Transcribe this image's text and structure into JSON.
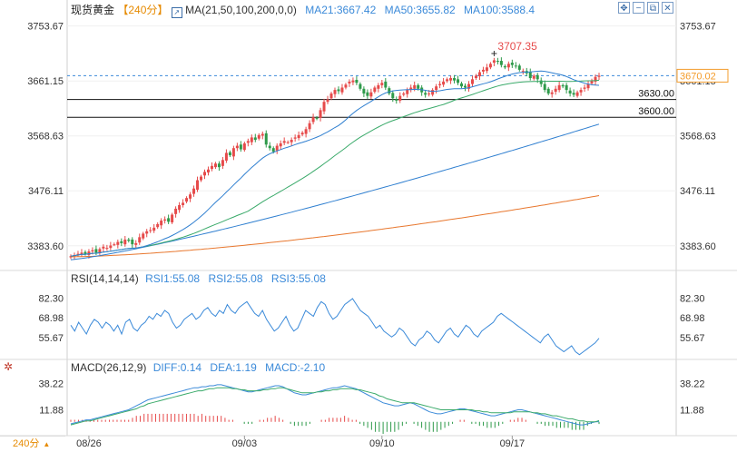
{
  "header": {
    "symbol": "现货黄金",
    "timeframe": "240分",
    "ma_label": "MA(21,50,100,200,0,0)",
    "ma21": "MA21:3667.42",
    "ma50": "MA50:3655.82",
    "ma100": "MA100:3588.4"
  },
  "rsi_header": {
    "label": "RSI(14,14,14)",
    "rsi1": "RSI1:55.08",
    "rsi2": "RSI2:55.08",
    "rsi3": "RSI3:55.08"
  },
  "macd_header": {
    "label": "MACD(26,12,9)",
    "diff": "DIFF:0.14",
    "dea": "DEA:1.19",
    "macd": "MACD:-2.10"
  },
  "timeframe_selector": "240分",
  "colors": {
    "up": "#e64a4a",
    "down": "#2e9a4a",
    "ma21": "#2f7fd0",
    "ma50": "#3aaa6a",
    "ma100": "#2f7fd0",
    "ma200": "#e8772e",
    "price_tag": "#f39c2c",
    "accent_blue": "#3b8ad9"
  },
  "chart_data": {
    "type": "candlestick",
    "price_axis_ticks": [
      "3753.67",
      "3661.15",
      "3568.63",
      "3476.11",
      "3383.60"
    ],
    "price_axis_values": [
      3753.67,
      3661.15,
      3568.63,
      3476.11,
      3383.6
    ],
    "price_range": [
      3345,
      3770
    ],
    "x_axis_labels": [
      "08/26",
      "09/03",
      "09/10",
      "09/17"
    ],
    "x_axis_positions_index": [
      5,
      48,
      86,
      122
    ],
    "bar_count": 147,
    "candles_close": [
      3366,
      3368,
      3370,
      3372,
      3370,
      3374,
      3376,
      3372,
      3378,
      3382,
      3380,
      3384,
      3386,
      3390,
      3388,
      3394,
      3392,
      3386,
      3388,
      3398,
      3404,
      3408,
      3410,
      3414,
      3420,
      3426,
      3428,
      3424,
      3436,
      3446,
      3452,
      3456,
      3464,
      3470,
      3480,
      3494,
      3500,
      3508,
      3512,
      3518,
      3522,
      3516,
      3528,
      3540,
      3536,
      3548,
      3552,
      3546,
      3556,
      3560,
      3566,
      3562,
      3570,
      3572,
      3554,
      3548,
      3542,
      3552,
      3556,
      3560,
      3558,
      3562,
      3566,
      3570,
      3574,
      3580,
      3590,
      3600,
      3598,
      3612,
      3626,
      3630,
      3640,
      3646,
      3644,
      3650,
      3655,
      3660,
      3662,
      3658,
      3648,
      3640,
      3636,
      3642,
      3650,
      3654,
      3658,
      3650,
      3640,
      3632,
      3628,
      3636,
      3640,
      3646,
      3650,
      3654,
      3648,
      3642,
      3638,
      3640,
      3646,
      3652,
      3656,
      3660,
      3664,
      3666,
      3662,
      3658,
      3652,
      3650,
      3656,
      3664,
      3670,
      3676,
      3680,
      3684,
      3690,
      3696,
      3694,
      3688,
      3684,
      3690,
      3688,
      3686,
      3680,
      3678,
      3674,
      3666,
      3670,
      3664,
      3656,
      3646,
      3640,
      3642,
      3648,
      3654,
      3652,
      3646,
      3640,
      3638,
      3642,
      3646,
      3650,
      3656,
      3662,
      3668,
      3670
    ],
    "ma21_end": 3667.42,
    "ma50_end": 3655.82,
    "ma100_end": 3588.4,
    "ma200_end": 3468,
    "high_marker": {
      "label": "3707.35",
      "value": 3707.35
    },
    "current_price": {
      "label": "3670.02",
      "value": 3670.02
    },
    "horizontal_levels": [
      {
        "label": "3630.00",
        "value": 3630.0
      },
      {
        "label": "3600.00",
        "value": 3600.0
      }
    ],
    "rsi": {
      "ticks": [
        "82.30",
        "68.98",
        "55.67"
      ],
      "tick_values": [
        82.3,
        68.98,
        55.67
      ],
      "range": [
        42,
        90
      ],
      "values": [
        64,
        60,
        66,
        62,
        58,
        64,
        68,
        66,
        62,
        66,
        64,
        60,
        64,
        58,
        66,
        68,
        62,
        60,
        64,
        66,
        70,
        68,
        72,
        70,
        74,
        72,
        66,
        62,
        64,
        68,
        70,
        72,
        68,
        70,
        74,
        76,
        72,
        70,
        74,
        72,
        78,
        74,
        72,
        76,
        78,
        80,
        76,
        72,
        70,
        74,
        68,
        64,
        60,
        62,
        66,
        70,
        64,
        60,
        62,
        68,
        74,
        72,
        70,
        76,
        80,
        78,
        72,
        68,
        70,
        74,
        78,
        80,
        82,
        78,
        74,
        72,
        70,
        66,
        62,
        64,
        60,
        58,
        56,
        58,
        62,
        60,
        56,
        52,
        50,
        54,
        56,
        60,
        58,
        54,
        52,
        56,
        60,
        62,
        58,
        56,
        60,
        64,
        62,
        58,
        56,
        60,
        62,
        64,
        66,
        70,
        72,
        70,
        68,
        66,
        64,
        62,
        60,
        58,
        56,
        54,
        52,
        56,
        58,
        54,
        50,
        48,
        46,
        48,
        50,
        46,
        44,
        46,
        48,
        50,
        52,
        55.08
      ]
    },
    "macd": {
      "ticks": [
        "38.22",
        "11.88"
      ],
      "tick_values": [
        38.22,
        11.88
      ],
      "range": [
        -12,
        46
      ],
      "diff": [
        -2,
        -1,
        0,
        1,
        2,
        2,
        3,
        4,
        5,
        6,
        7,
        8,
        9,
        10,
        11,
        12,
        14,
        16,
        18,
        20,
        22,
        23,
        24,
        25,
        26,
        27,
        28,
        29,
        30,
        31,
        32,
        33,
        34,
        34,
        35,
        35,
        36,
        36,
        37,
        37,
        36,
        35,
        34,
        33,
        32,
        31,
        30,
        30,
        31,
        32,
        33,
        34,
        35,
        36,
        36,
        35,
        33,
        31,
        29,
        28,
        27,
        27,
        28,
        29,
        30,
        31,
        32,
        33,
        34,
        34,
        35,
        36,
        35,
        34,
        33,
        31,
        29,
        27,
        25,
        23,
        21,
        19,
        18,
        17,
        16,
        16,
        17,
        18,
        19,
        18,
        16,
        14,
        12,
        10,
        9,
        8,
        8,
        9,
        10,
        11,
        12,
        13,
        13,
        12,
        11,
        10,
        9,
        8,
        7,
        6,
        6,
        7,
        8,
        9,
        10,
        11,
        12,
        12,
        11,
        10,
        9,
        8,
        7,
        6,
        5,
        4,
        3,
        2,
        1,
        0,
        -1,
        -2,
        -3,
        -3,
        -2,
        -1,
        0,
        0.14
      ],
      "dea": [
        -3,
        -2,
        -1,
        0,
        1,
        1,
        2,
        3,
        4,
        5,
        6,
        7,
        8,
        9,
        10,
        11,
        12,
        13,
        15,
        16,
        18,
        19,
        20,
        21,
        22,
        23,
        24,
        25,
        26,
        27,
        28,
        29,
        30,
        31,
        31,
        32,
        33,
        33,
        34,
        34,
        34,
        34,
        33,
        33,
        32,
        32,
        31,
        31,
        31,
        31,
        32,
        32,
        33,
        33,
        34,
        34,
        33,
        32,
        31,
        30,
        29,
        29,
        29,
        29,
        30,
        30,
        31,
        31,
        32,
        32,
        33,
        33,
        33,
        33,
        32,
        32,
        31,
        30,
        29,
        28,
        26,
        25,
        23,
        22,
        21,
        20,
        19,
        19,
        19,
        19,
        18,
        17,
        16,
        15,
        14,
        13,
        12,
        12,
        12,
        12,
        12,
        12,
        12,
        12,
        12,
        11,
        11,
        10,
        10,
        9,
        9,
        9,
        9,
        9,
        9,
        10,
        10,
        10,
        10,
        10,
        9,
        9,
        8,
        8,
        7,
        6,
        6,
        5,
        4,
        3,
        3,
        2,
        1,
        1,
        0,
        0,
        0,
        1.19
      ]
    }
  }
}
